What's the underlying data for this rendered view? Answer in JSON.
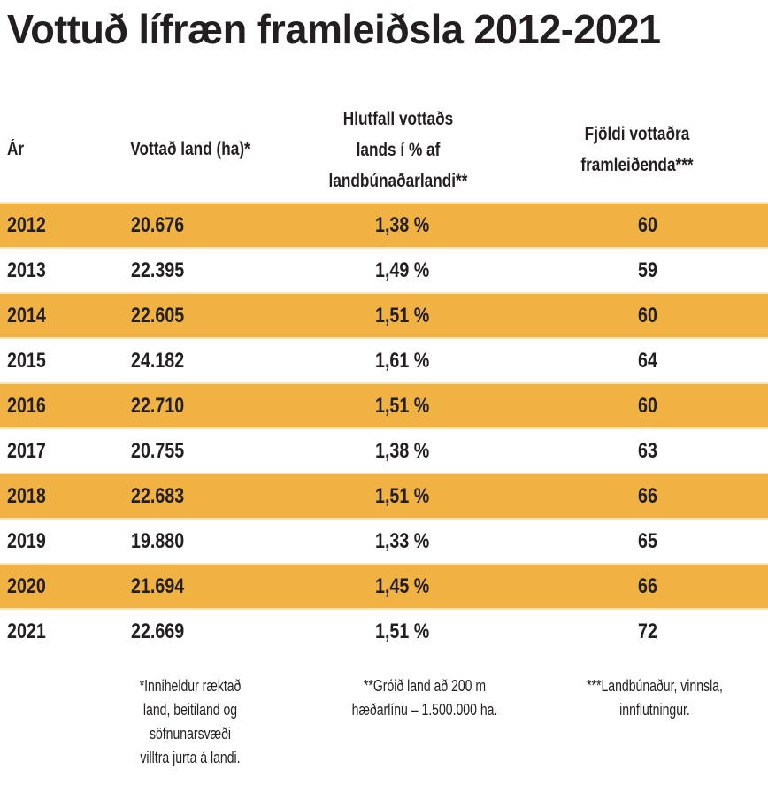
{
  "title": "Vottuð lífræn framleiðsla 2012-2021",
  "colors": {
    "stripe": "#f1b244",
    "separator": "#fce3b2",
    "text": "#231f20"
  },
  "table": {
    "headers": {
      "year": "Ár",
      "land": "Vottað land (ha)*",
      "pct": "Hlutfall vottaðs\nlands í % af\nlandbúnaðarlandi**",
      "producers": "Fjöldi vottaðra\nframleiðenda***"
    },
    "rows": [
      {
        "year": "2012",
        "land": "20.676",
        "pct": "1,38 %",
        "producers": "60"
      },
      {
        "year": "2013",
        "land": "22.395",
        "pct": "1,49 %",
        "producers": "59"
      },
      {
        "year": "2014",
        "land": "22.605",
        "pct": "1,51 %",
        "producers": "60"
      },
      {
        "year": "2015",
        "land": "24.182",
        "pct": "1,61 %",
        "producers": "64"
      },
      {
        "year": "2016",
        "land": "22.710",
        "pct": "1,51 %",
        "producers": "60"
      },
      {
        "year": "2017",
        "land": "20.755",
        "pct": "1,38 %",
        "producers": "63"
      },
      {
        "year": "2018",
        "land": "22.683",
        "pct": "1,51 %",
        "producers": "66"
      },
      {
        "year": "2019",
        "land": "19.880",
        "pct": "1,33 %",
        "producers": "65"
      },
      {
        "year": "2020",
        "land": "21.694",
        "pct": "1,45 %",
        "producers": "66"
      },
      {
        "year": "2021",
        "land": "22.669",
        "pct": "1,51 %",
        "producers": "72"
      }
    ]
  },
  "footnotes": {
    "land": "*Inniheldur ræktað\nland, beitiland og\nsöfnunarsvæði\nvilltra jurta á landi.",
    "pct": "**Gróið land að 200 m\nhæðarlínu – 1.500.000 ha.",
    "producers": "***Landbúnaður, vinnsla,\ninnflutningur."
  }
}
